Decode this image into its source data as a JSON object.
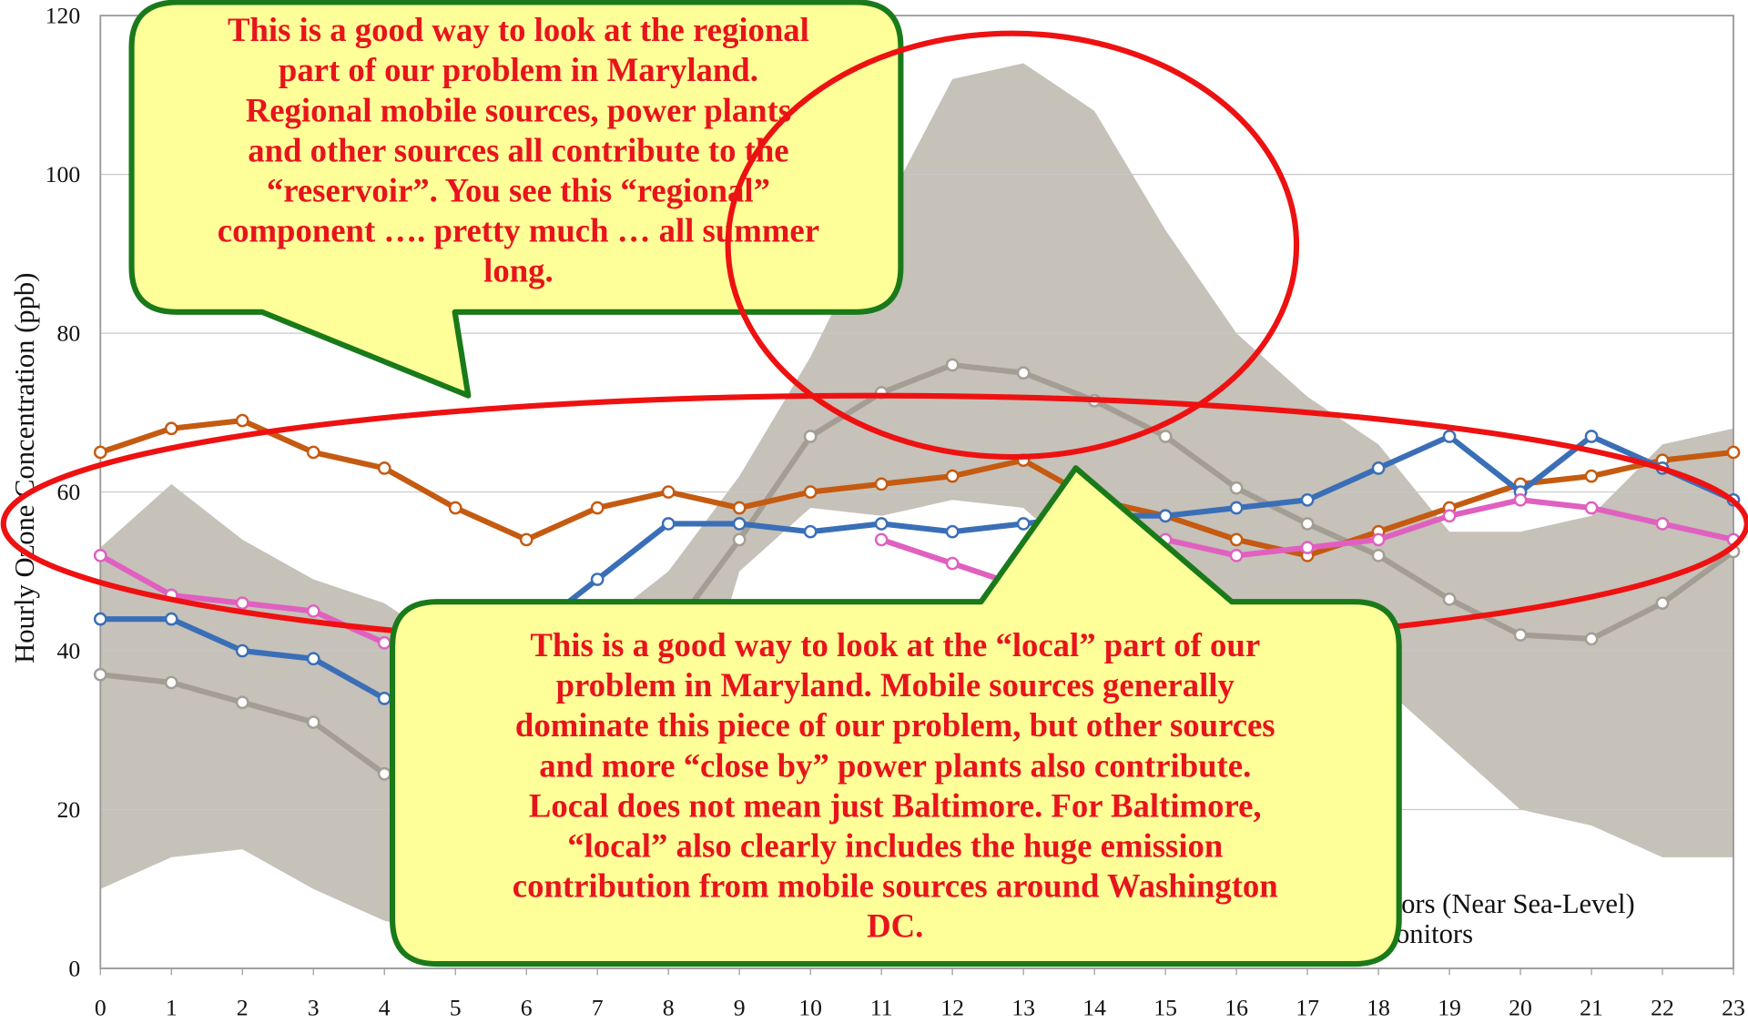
{
  "chart_data": {
    "type": "line",
    "y_label": "Hourly Ozone Concentration (ppb)",
    "x": [
      0,
      1,
      2,
      3,
      4,
      5,
      6,
      7,
      8,
      9,
      10,
      11,
      12,
      13,
      14,
      15,
      16,
      17,
      18,
      19,
      20,
      21,
      22,
      23
    ],
    "xlim": [
      0,
      23
    ],
    "xticks": [
      0,
      1,
      2,
      3,
      4,
      5,
      6,
      7,
      8,
      9,
      10,
      11,
      12,
      13,
      14,
      15,
      16,
      17,
      18,
      19,
      20,
      21,
      22,
      23
    ],
    "ylim": [
      0,
      120
    ],
    "yticks": [
      0,
      20,
      40,
      60,
      80,
      100,
      120
    ],
    "grid": true,
    "band": {
      "color": "#c6c1b9",
      "upper": [
        53,
        61,
        54,
        49,
        46,
        40,
        38,
        43,
        50,
        62,
        77,
        95,
        112,
        114,
        108,
        93,
        80,
        72,
        66,
        55,
        55,
        57,
        66,
        68
      ],
      "lower": [
        10,
        14,
        15,
        10,
        6,
        4,
        3,
        5,
        20,
        50,
        58,
        57,
        59,
        58,
        50,
        43,
        33,
        28,
        36,
        28,
        20,
        18,
        14,
        14
      ]
    },
    "series": [
      {
        "color": "#a39d94",
        "values": [
          37,
          36,
          33.5,
          31,
          24.5,
          20,
          22,
          30,
          42,
          54,
          67,
          72.5,
          76,
          75,
          71.5,
          67,
          60.5,
          56,
          52,
          46.5,
          42,
          41.5,
          46,
          52.5
        ]
      },
      {
        "color": "#c55a11",
        "values": [
          65,
          68,
          69,
          65,
          63,
          58,
          54,
          58,
          60,
          58,
          60,
          61,
          62,
          64,
          59,
          57,
          54,
          52,
          55,
          58,
          61,
          62,
          64,
          65
        ]
      },
      {
        "color": "#3a6fb7",
        "values": [
          44,
          44,
          40,
          39,
          34,
          32,
          42,
          49,
          56,
          56,
          55,
          56,
          55,
          56,
          57,
          57,
          58,
          59,
          63,
          67,
          60,
          67,
          63,
          59
        ]
      },
      {
        "color": "#e060c0",
        "values": [
          52,
          47,
          46,
          45,
          41,
          null,
          null,
          null,
          null,
          null,
          null,
          54,
          51,
          48,
          50,
          54,
          52,
          53,
          54,
          57,
          59,
          58,
          56,
          54
        ]
      }
    ],
    "legend_fragments": [
      "tors (Near Sea-Level)",
      "onitors"
    ],
    "callouts": [
      {
        "lines": [
          "This is a good way to look at the regional",
          "part of our problem in Maryland.",
          "Regional mobile sources, power plants",
          "and other sources all contribute to the",
          "“reservoir”.  You see this “regional”",
          "component …. pretty much … all summer",
          "long."
        ]
      },
      {
        "lines": [
          "This is a good way to look at the “local” part of our",
          "problem in Maryland.  Mobile sources generally",
          "dominate this piece of our problem, but other sources",
          "and more “close by” power plants also contribute.",
          "Local does not mean just Baltimore.  For Baltimore,",
          "“local” also clearly includes the huge emission",
          "contribution from mobile sources around Washington",
          "DC."
        ]
      }
    ]
  }
}
